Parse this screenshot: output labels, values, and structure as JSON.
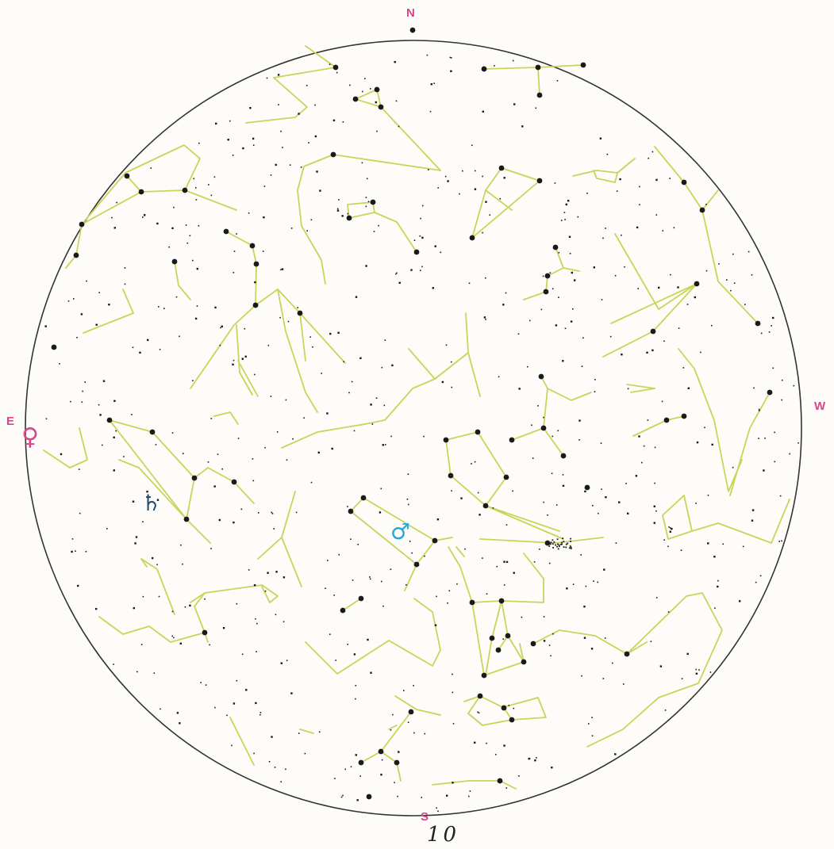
{
  "compass": {
    "north": "N",
    "south": "S",
    "east": "E",
    "west": "W"
  },
  "planets": [
    {
      "id": "venus",
      "symbol": "♀",
      "color": "#d6478a"
    },
    {
      "id": "saturn",
      "symbol": "♄",
      "color": "#1f4f73"
    },
    {
      "id": "mars",
      "symbol": "♂",
      "color": "#2aa7d6"
    }
  ],
  "page_number": "10",
  "colors": {
    "horizon": "#333333",
    "constellation_line": "#c9d45a",
    "star": "#1a1a1a",
    "background": "#fdfcf8"
  },
  "icons": {
    "venus": "venus-icon",
    "saturn": "saturn-icon",
    "mars": "mars-icon"
  }
}
